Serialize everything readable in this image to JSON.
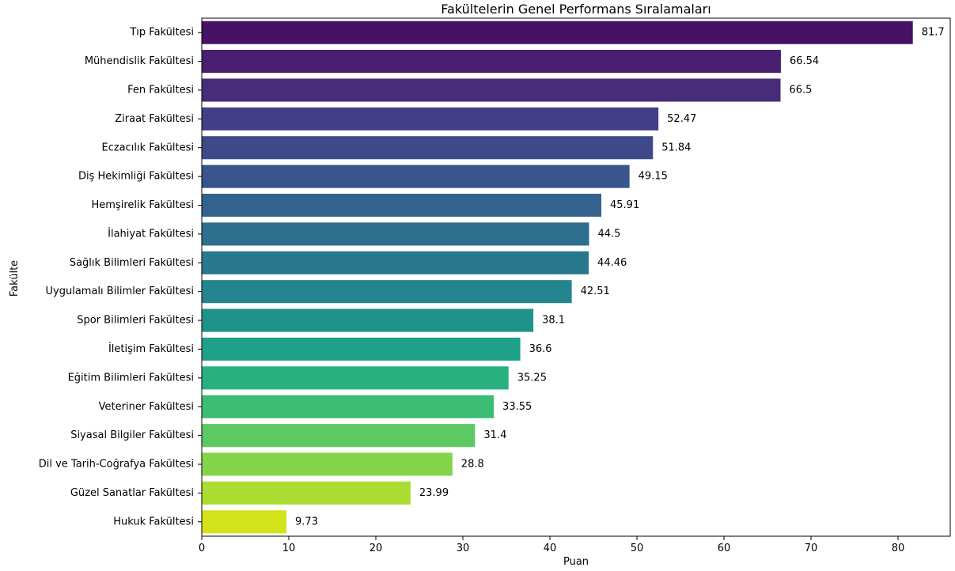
{
  "chart_data": {
    "type": "bar",
    "orientation": "horizontal",
    "title": "Fakültelerin Genel Performans Sıralamaları",
    "xlabel": "Puan",
    "ylabel": "Fakülte",
    "xlim": [
      0,
      86
    ],
    "xticks": [
      0,
      10,
      20,
      30,
      40,
      50,
      60,
      70,
      80
    ],
    "grid": false,
    "categories": [
      "Tıp Fakültesi",
      "Mühendislik Fakültesi",
      "Fen Fakültesi",
      "Ziraat Fakültesi",
      "Eczacılık Fakültesi",
      "Diş Hekimliği Fakültesi",
      "Hemşirelik Fakültesi",
      "İlahiyat Fakültesi",
      "Sağlık Bilimleri Fakültesi",
      "Uygulamalı Bilimler Fakültesi",
      "Spor Bilimleri Fakültesi",
      "İletişim Fakültesi",
      "Eğitim Bilimleri Fakültesi",
      "Veteriner Fakültesi",
      "Siyasal Bilgiler Fakültesi",
      "Dil ve Tarih-Coğrafya Fakültesi",
      "Güzel Sanatlar Fakültesi",
      "Hukuk Fakültesi"
    ],
    "values": [
      81.7,
      66.54,
      66.5,
      52.47,
      51.84,
      49.15,
      45.91,
      44.5,
      44.46,
      42.51,
      38.1,
      36.6,
      35.25,
      33.55,
      31.4,
      28.8,
      23.99,
      9.73
    ],
    "value_labels": [
      "81.7",
      "66.54",
      "66.5",
      "52.47",
      "51.84",
      "49.15",
      "45.91",
      "44.5",
      "44.46",
      "42.51",
      "38.1",
      "36.6",
      "35.25",
      "33.55",
      "31.4",
      "28.8",
      "23.99",
      "9.73"
    ],
    "colors": [
      "#471164",
      "#481f71",
      "#472c7a",
      "#433e85",
      "#3e4989",
      "#3a548c",
      "#33628d",
      "#2e6e8e",
      "#29798e",
      "#25858e",
      "#20928c",
      "#1fa088",
      "#2ab07f",
      "#3dbc74",
      "#5ec962",
      "#84d44b",
      "#aadc32",
      "#d2e21b"
    ]
  }
}
